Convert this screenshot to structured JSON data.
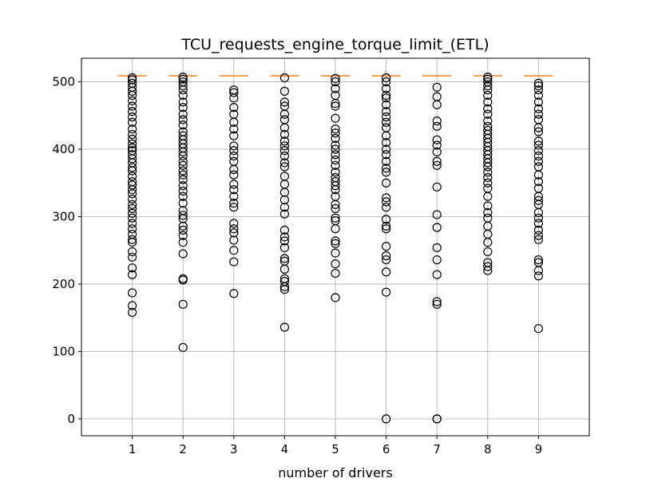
{
  "chart_data": {
    "type": "boxplot",
    "title": "TCU_requests_engine_torque_limit_(ETL)",
    "xlabel": "number of drivers",
    "ylabel": "",
    "categories": [
      "1",
      "2",
      "3",
      "4",
      "5",
      "6",
      "7",
      "8",
      "9"
    ],
    "ylim": [
      -25,
      535
    ],
    "yticks": [
      0,
      100,
      200,
      300,
      400,
      500
    ],
    "grid": true,
    "colors": {
      "median": "#ff7f0e",
      "flier": "#000000",
      "grid": "#b0b0b0"
    },
    "series": [
      {
        "category": "1",
        "median": 509,
        "fliers": [
          158,
          168,
          187,
          214,
          224,
          240,
          248,
          262,
          266,
          274,
          282,
          290,
          298,
          305,
          312,
          318,
          326,
          334,
          340,
          347,
          352,
          360,
          368,
          373,
          380,
          386,
          392,
          398,
          402,
          408,
          415,
          422,
          430,
          440,
          448,
          456,
          464,
          472,
          480,
          486,
          492,
          498,
          503,
          506
        ]
      },
      {
        "category": "2",
        "median": 509,
        "fliers": [
          106,
          170,
          206,
          208,
          245,
          262,
          272,
          280,
          286,
          297,
          302,
          309,
          320,
          330,
          338,
          346,
          355,
          362,
          368,
          376,
          382,
          390,
          396,
          402,
          408,
          414,
          420,
          426,
          436,
          444,
          452,
          462,
          470,
          480,
          488,
          494,
          500,
          504,
          507
        ]
      },
      {
        "category": "3",
        "median": 509,
        "fliers": [
          186,
          233,
          250,
          265,
          276,
          282,
          290,
          314,
          320,
          330,
          340,
          348,
          362,
          370,
          382,
          390,
          398,
          405,
          420,
          430,
          440,
          452,
          462,
          476,
          484,
          488
        ]
      },
      {
        "category": "4",
        "median": 509,
        "fliers": [
          136,
          192,
          196,
          204,
          208,
          222,
          234,
          238,
          254,
          264,
          270,
          280,
          304,
          314,
          325,
          336,
          348,
          360,
          374,
          380,
          390,
          398,
          405,
          412,
          422,
          432,
          444,
          452,
          464,
          470,
          486,
          506
        ]
      },
      {
        "category": "5",
        "median": 509,
        "fliers": [
          180,
          216,
          230,
          246,
          260,
          264,
          282,
          294,
          298,
          312,
          318,
          330,
          340,
          346,
          352,
          358,
          366,
          376,
          384,
          392,
          400,
          406,
          416,
          424,
          430,
          446,
          464,
          468,
          480,
          490,
          500,
          505
        ]
      },
      {
        "category": "6",
        "median": 509,
        "fliers": [
          0,
          188,
          218,
          236,
          242,
          256,
          282,
          286,
          296,
          314,
          322,
          328,
          350,
          366,
          372,
          382,
          392,
          400,
          410,
          420,
          432,
          440,
          448,
          456,
          466,
          476,
          480,
          490,
          500,
          506
        ]
      },
      {
        "category": "7",
        "median": 509,
        "fliers": [
          0,
          0,
          170,
          174,
          214,
          236,
          254,
          284,
          303,
          344,
          376,
          382,
          396,
          406,
          414,
          434,
          442,
          466,
          478,
          492
        ]
      },
      {
        "category": "8",
        "median": 509,
        "fliers": [
          220,
          226,
          232,
          248,
          262,
          274,
          286,
          298,
          306,
          316,
          330,
          342,
          350,
          358,
          366,
          374,
          380,
          386,
          392,
          398,
          404,
          410,
          416,
          422,
          428,
          434,
          442,
          452,
          460,
          470,
          480,
          488,
          494,
          500,
          504,
          507
        ]
      },
      {
        "category": "9",
        "median": 509,
        "fliers": [
          134,
          212,
          220,
          232,
          236,
          266,
          272,
          280,
          290,
          298,
          306,
          318,
          324,
          330,
          342,
          352,
          362,
          374,
          382,
          390,
          398,
          406,
          412,
          426,
          432,
          444,
          452,
          460,
          470,
          480,
          488,
          494,
          498
        ]
      }
    ]
  }
}
